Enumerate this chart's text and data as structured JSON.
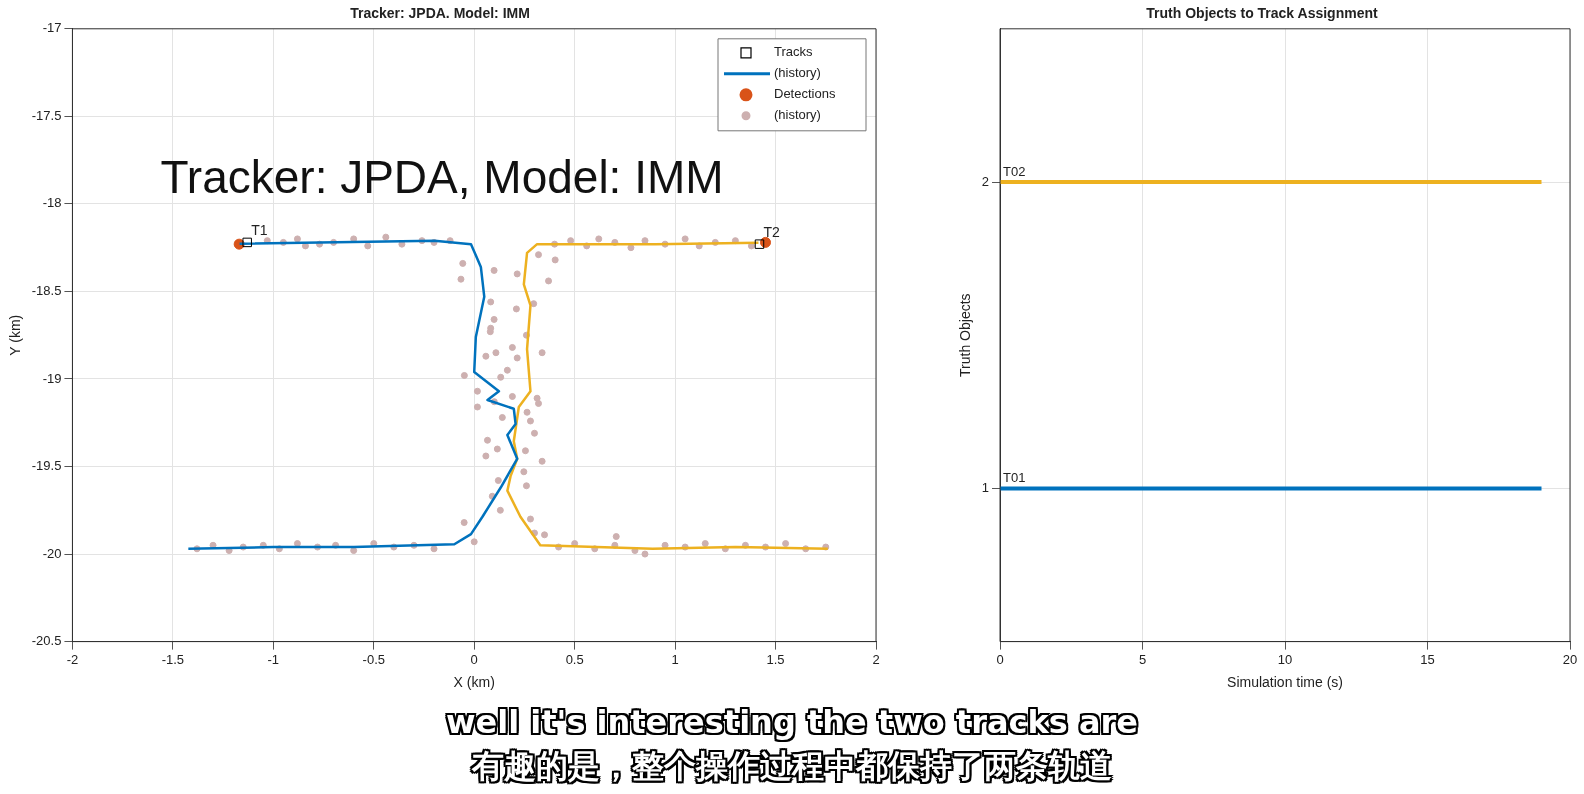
{
  "chart_data": [
    {
      "type": "scatter",
      "title": "Tracker: JPDA. Model: IMM",
      "xlabel": "X (km)",
      "ylabel": "Y (km)",
      "xlim": [
        -2,
        2
      ],
      "xticks": [
        -2,
        -1.5,
        -1,
        -0.5,
        0,
        0.5,
        1,
        1.5,
        2
      ],
      "ylim": [
        -20.5,
        -17
      ],
      "yticks": [
        -20.5,
        -20,
        -19.5,
        -19,
        -18.5,
        -18,
        -17.5,
        -17
      ],
      "grid": true,
      "legend": "top right",
      "series": [
        {
          "name": "Tracks",
          "type": "scatter",
          "marker": "square",
          "color": "#000000",
          "x": [
            -1.13,
            1.42
          ],
          "values": [
            -18.22,
            -18.23
          ]
        },
        {
          "name": "(history)",
          "type": "line",
          "marker": "none",
          "color": "#0072bd",
          "x": [
            -1.168,
            -0.197,
            -0.016,
            0.033,
            0.05,
            0.008,
            0,
            0.123,
            0.066,
            0.197,
            0.206,
            0.165,
            0.214,
            0.132,
            0.041,
            -0.016,
            -0.099,
            -0.6,
            -1.0,
            -1.423
          ],
          "values": [
            -18.227,
            -18.21,
            -18.23,
            -18.36,
            -18.53,
            -18.76,
            -18.96,
            -19.07,
            -19.12,
            -19.17,
            -19.257,
            -19.32,
            -19.456,
            -19.62,
            -19.787,
            -19.886,
            -19.944,
            -19.96,
            -19.96,
            -19.97
          ]
        },
        {
          "type": "line",
          "marker": "none",
          "color": "#edb120",
          "x": [
            1.415,
            0.9,
            0.313,
            0.263,
            0.247,
            0.28,
            0.263,
            0.28,
            0.222,
            0.197,
            0.214,
            0.181,
            0.165,
            0.23,
            0.329,
            0.888,
            1.3,
            1.76
          ],
          "values": [
            -18.222,
            -18.23,
            -18.23,
            -18.28,
            -18.46,
            -18.58,
            -18.83,
            -19.07,
            -19.16,
            -19.356,
            -19.456,
            -19.555,
            -19.638,
            -19.787,
            -19.95,
            -19.97,
            -19.96,
            -19.97
          ]
        },
        {
          "name": "Detections",
          "type": "scatter",
          "marker": "circle",
          "color": "#d95319",
          "x": [
            -1.17,
            1.45
          ],
          "values": [
            -18.23,
            -18.22
          ]
        },
        {
          "name": "(history)",
          "type": "scatter",
          "marker": "circle",
          "color": "#cdb0b0",
          "x": [
            -1.03,
            -0.95,
            -0.88,
            -0.84,
            -0.77,
            -0.7,
            -0.6,
            -0.53,
            -0.44,
            -0.36,
            -0.26,
            -0.2,
            -0.12,
            -0.057,
            -0.066,
            0.099,
            0.082,
            0.099,
            0.082,
            0.058,
            -0.049,
            0.016,
            0.214,
            0.37,
            0.403,
            0.32,
            0.296,
            0.21,
            0.08,
            0.26,
            0.19,
            0.338,
            0.108,
            0.214,
            0.165,
            0.132,
            0.016,
            0.19,
            0.313,
            0.32,
            0.1,
            0.263,
            0.14,
            0.28,
            0.3,
            0.066,
            0.115,
            0.255,
            0.058,
            0.338,
            0.247,
            0.12,
            0.26,
            0.09,
            0.13,
            -0.05,
            0.28,
            0.3,
            0.35,
            0,
            0.707,
            -1.38,
            -1.3,
            -1.22,
            -1.15,
            -1.05,
            -0.97,
            -0.88,
            -0.78,
            -0.69,
            -0.6,
            -0.5,
            -0.4,
            -0.3,
            -0.2,
            0.42,
            0.5,
            0.6,
            0.7,
            0.8,
            0.85,
            0.95,
            1.05,
            1.15,
            1.25,
            1.35,
            1.45,
            1.55,
            1.65,
            1.75,
            0.4,
            0.48,
            0.56,
            0.62,
            0.7,
            0.78,
            0.85,
            0.95,
            1.05,
            1.12,
            1.2,
            1.3,
            1.38
          ],
          "values": [
            -18.21,
            -18.22,
            -18.2,
            -18.24,
            -18.23,
            -18.22,
            -18.2,
            -18.24,
            -18.19,
            -18.23,
            -18.21,
            -18.22,
            -18.21,
            -18.34,
            -18.43,
            -18.38,
            -18.56,
            -18.66,
            -18.71,
            -18.87,
            -18.98,
            -19.16,
            -18.4,
            -18.44,
            -18.32,
            -18.29,
            -18.57,
            -18.6,
            -18.73,
            -18.75,
            -18.82,
            -18.85,
            -18.85,
            -18.88,
            -18.95,
            -18.99,
            -19.07,
            -19.1,
            -19.11,
            -19.14,
            -19.13,
            -19.19,
            -19.22,
            -19.24,
            -19.31,
            -19.35,
            -19.4,
            -19.41,
            -19.44,
            -19.47,
            -19.53,
            -19.58,
            -19.61,
            -19.67,
            -19.75,
            -19.82,
            -19.8,
            -19.88,
            -19.89,
            -19.93,
            -19.9,
            -19.97,
            -19.95,
            -19.98,
            -19.96,
            -19.95,
            -19.97,
            -19.94,
            -19.96,
            -19.95,
            -19.98,
            -19.94,
            -19.96,
            -19.95,
            -19.97,
            -19.96,
            -19.94,
            -19.97,
            -19.95,
            -19.98,
            -20,
            -19.95,
            -19.96,
            -19.94,
            -19.97,
            -19.95,
            -19.96,
            -19.94,
            -19.97,
            -19.96,
            -18.23,
            -18.21,
            -18.24,
            -18.2,
            -18.22,
            -18.25,
            -18.21,
            -18.23,
            -18.2,
            -18.24,
            -18.22,
            -18.21,
            -18.24
          ]
        }
      ],
      "annotations": [
        "Tracker: JPDA, Model: IMM",
        {
          "text": "T1",
          "x": -1.13,
          "y": -18.22
        },
        {
          "text": "T2",
          "x": 1.42,
          "y": -18.23
        },
        "well it's interesting the two tracks are",
        "有趣的是，整个操作过程中都保持了两条轨道"
      ]
    },
    {
      "type": "line",
      "title": "Truth Objects to Track Assignment",
      "xlabel": "Simulation time (s)",
      "ylabel": "Truth Objects",
      "xlim": [
        0,
        20
      ],
      "xticks": [
        0,
        5,
        10,
        15,
        20
      ],
      "ylim": [
        0.5,
        2.5
      ],
      "yticks": [
        1,
        2
      ],
      "grid": true,
      "marker": "none",
      "series": [
        {
          "name": "T01",
          "color": "#0072bd",
          "x": [
            0,
            19
          ],
          "values": [
            1,
            1
          ]
        },
        {
          "name": "T02",
          "color": "#edb120",
          "x": [
            0,
            19
          ],
          "values": [
            2,
            2
          ]
        }
      ]
    }
  ]
}
